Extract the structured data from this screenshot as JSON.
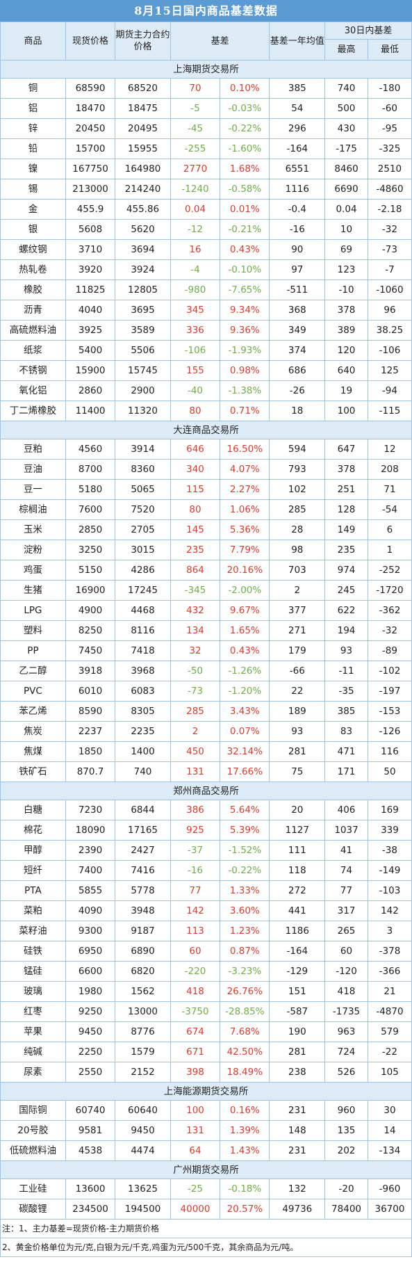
{
  "title": "8月15日国内商品基差数据",
  "headers": {
    "product": "商品",
    "spot": "现货价格",
    "futures": "期货主力合约价格",
    "basis": "基差",
    "avg": "基差一年均值",
    "range30": "30日内基差",
    "high": "最高",
    "low": "最低"
  },
  "colors": {
    "header_bg": "#5b9bd5",
    "subheader_bg": "#ddebf7",
    "positive": "#e0392d",
    "negative": "#70ad47"
  },
  "sections": [
    {
      "name": "上海期货交易所",
      "rows": [
        [
          "铜",
          "68590",
          "68520",
          "70",
          "0.10%",
          "385",
          "740",
          "-180"
        ],
        [
          "铝",
          "18470",
          "18475",
          "-5",
          "-0.03%",
          "54",
          "500",
          "-60"
        ],
        [
          "锌",
          "20450",
          "20495",
          "-45",
          "-0.22%",
          "296",
          "430",
          "-95"
        ],
        [
          "铅",
          "15700",
          "15955",
          "-255",
          "-1.60%",
          "-164",
          "-175",
          "-325"
        ],
        [
          "镍",
          "167750",
          "164980",
          "2770",
          "1.68%",
          "6551",
          "8460",
          "2510"
        ],
        [
          "锡",
          "213000",
          "214240",
          "-1240",
          "-0.58%",
          "1116",
          "6690",
          "-4860"
        ],
        [
          "金",
          "455.9",
          "455.86",
          "0.04",
          "0.01%",
          "-0.4",
          "0.04",
          "-2.18"
        ],
        [
          "银",
          "5608",
          "5620",
          "-12",
          "-0.21%",
          "-16",
          "10",
          "-32"
        ],
        [
          "螺纹钢",
          "3710",
          "3694",
          "16",
          "0.43%",
          "90",
          "69",
          "-73"
        ],
        [
          "热轧卷",
          "3920",
          "3924",
          "-4",
          "-0.10%",
          "97",
          "123",
          "-7"
        ],
        [
          "橡胶",
          "11825",
          "12805",
          "-980",
          "-7.65%",
          "-511",
          "-10",
          "-1060"
        ],
        [
          "沥青",
          "4040",
          "3695",
          "345",
          "9.34%",
          "368",
          "378",
          "96"
        ],
        [
          "高硫燃料油",
          "3925",
          "3589",
          "336",
          "9.36%",
          "349",
          "389",
          "38.25"
        ],
        [
          "纸浆",
          "5400",
          "5506",
          "-106",
          "-1.93%",
          "374",
          "120",
          "-106"
        ],
        [
          "不锈钢",
          "15900",
          "15745",
          "155",
          "0.98%",
          "686",
          "640",
          "125"
        ],
        [
          "氧化铝",
          "2860",
          "2900",
          "-40",
          "-1.38%",
          "-26",
          "19",
          "-94"
        ],
        [
          "丁二烯橡胶",
          "11400",
          "11320",
          "80",
          "0.71%",
          "18",
          "100",
          "-115"
        ]
      ]
    },
    {
      "name": "大连商品交易所",
      "rows": [
        [
          "豆粕",
          "4560",
          "3914",
          "646",
          "16.50%",
          "594",
          "647",
          "12"
        ],
        [
          "豆油",
          "8700",
          "8360",
          "340",
          "4.07%",
          "793",
          "378",
          "208"
        ],
        [
          "豆一",
          "5180",
          "5065",
          "115",
          "2.27%",
          "102",
          "251",
          "71"
        ],
        [
          "棕榈油",
          "7600",
          "7520",
          "80",
          "1.06%",
          "285",
          "128",
          "-54"
        ],
        [
          "玉米",
          "2850",
          "2705",
          "145",
          "5.36%",
          "28",
          "149",
          "6"
        ],
        [
          "淀粉",
          "3250",
          "3015",
          "235",
          "7.79%",
          "98",
          "235",
          "1"
        ],
        [
          "鸡蛋",
          "5150",
          "4286",
          "864",
          "20.16%",
          "703",
          "974",
          "-252"
        ],
        [
          "生猪",
          "16900",
          "17245",
          "-345",
          "-2.00%",
          "2",
          "245",
          "-1720"
        ],
        [
          "LPG",
          "4900",
          "4468",
          "432",
          "9.67%",
          "377",
          "622",
          "-362"
        ],
        [
          "塑料",
          "8250",
          "8116",
          "134",
          "1.65%",
          "271",
          "194",
          "-32"
        ],
        [
          "PP",
          "7450",
          "7418",
          "32",
          "0.43%",
          "179",
          "93",
          "-89"
        ],
        [
          "乙二醇",
          "3918",
          "3968",
          "-50",
          "-1.26%",
          "-66",
          "-11",
          "-102"
        ],
        [
          "PVC",
          "6010",
          "6083",
          "-73",
          "-1.20%",
          "22",
          "-35",
          "-197"
        ],
        [
          "苯乙烯",
          "8590",
          "8305",
          "285",
          "3.43%",
          "189",
          "385",
          "-153"
        ],
        [
          "焦炭",
          "2237",
          "2235",
          "2",
          "0.07%",
          "93",
          "83",
          "-126"
        ],
        [
          "焦煤",
          "1850",
          "1400",
          "450",
          "32.14%",
          "281",
          "471",
          "116"
        ],
        [
          "铁矿石",
          "870.7",
          "740",
          "131",
          "17.66%",
          "75",
          "171",
          "50"
        ]
      ]
    },
    {
      "name": "郑州商品交易所",
      "rows": [
        [
          "白糖",
          "7230",
          "6844",
          "386",
          "5.64%",
          "20",
          "406",
          "169"
        ],
        [
          "棉花",
          "18090",
          "17165",
          "925",
          "5.39%",
          "1127",
          "1037",
          "339"
        ],
        [
          "甲醇",
          "2390",
          "2427",
          "-37",
          "-1.52%",
          "111",
          "41",
          "-38"
        ],
        [
          "短纤",
          "7400",
          "7416",
          "-16",
          "-0.22%",
          "118",
          "74",
          "-149"
        ],
        [
          "PTA",
          "5855",
          "5778",
          "77",
          "1.33%",
          "272",
          "77",
          "-103"
        ],
        [
          "菜粕",
          "4090",
          "3948",
          "142",
          "3.60%",
          "441",
          "317",
          "142"
        ],
        [
          "菜籽油",
          "9300",
          "9187",
          "113",
          "1.23%",
          "1186",
          "265",
          "3"
        ],
        [
          "硅铁",
          "6950",
          "6890",
          "60",
          "0.87%",
          "-164",
          "60",
          "-378"
        ],
        [
          "锰硅",
          "6600",
          "6820",
          "-220",
          "-3.23%",
          "-129",
          "-120",
          "-366"
        ],
        [
          "玻璃",
          "1980",
          "1562",
          "418",
          "26.76%",
          "151",
          "418",
          "21"
        ],
        [
          "红枣",
          "9250",
          "13000",
          "-3750",
          "-28.85%",
          "-587",
          "-1735",
          "-4870"
        ],
        [
          "苹果",
          "9450",
          "8776",
          "674",
          "7.68%",
          "190",
          "963",
          "579"
        ],
        [
          "纯碱",
          "2250",
          "1579",
          "671",
          "42.50%",
          "281",
          "724",
          "-22"
        ],
        [
          "尿素",
          "2550",
          "2152",
          "398",
          "18.49%",
          "238",
          "526",
          "105"
        ]
      ]
    },
    {
      "name": "上海能源期货交易所",
      "rows": [
        [
          "国际铜",
          "60740",
          "60640",
          "100",
          "0.16%",
          "231",
          "960",
          "30"
        ],
        [
          "20号胶",
          "9581",
          "9450",
          "131",
          "1.39%",
          "148",
          "135",
          "14"
        ],
        [
          "低硫燃料油",
          "4538",
          "4474",
          "64",
          "1.43%",
          "231",
          "202",
          "-134"
        ]
      ]
    },
    {
      "name": "广州期货交易所",
      "rows": [
        [
          "工业硅",
          "13600",
          "13625",
          "-25",
          "-0.18%",
          "132",
          "-20",
          "-960"
        ],
        [
          "碳酸锂",
          "234500",
          "194500",
          "40000",
          "20.57%",
          "49736",
          "78400",
          "36700"
        ]
      ]
    }
  ],
  "notes": [
    "注：1、主力基差=现货价格-主力期货价格",
    "2、黄金价格单位为元/克,白银为元/千克,鸡蛋为元/500千克，其余商品为元/吨。"
  ]
}
